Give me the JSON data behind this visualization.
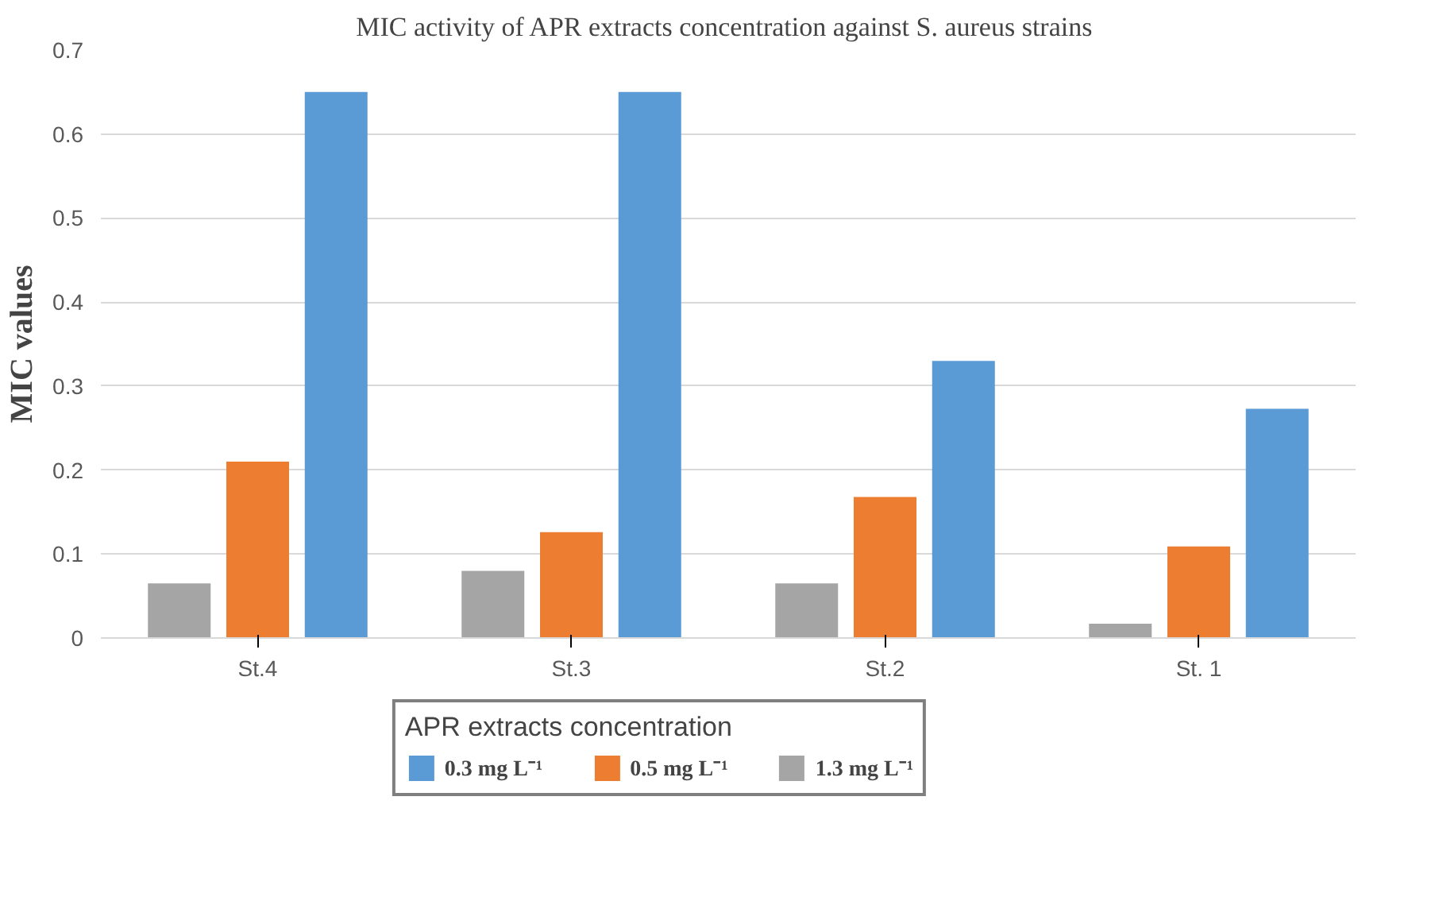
{
  "chart_data": {
    "type": "bar",
    "title": "MIC activity of APR extracts concentration against S. aureus  strains",
    "ylabel": "MIC values",
    "legend_title": "APR extracts concentration",
    "categories": [
      "St.4",
      "St.3",
      "St.2",
      "St. 1"
    ],
    "series": [
      {
        "name": "0.3 mg L⁻¹",
        "color": "#5b9bd5",
        "values": [
          0.65,
          0.65,
          0.33,
          0.273
        ]
      },
      {
        "name": "0.5 mg L⁻¹",
        "color": "#ed7d31",
        "values": [
          0.21,
          0.126,
          0.168,
          0.109
        ]
      },
      {
        "name": "1.3 mg L⁻¹",
        "color": "#a5a5a5",
        "values": [
          0.065,
          0.08,
          0.065,
          0.017
        ]
      }
    ],
    "ylim": [
      0,
      0.7
    ],
    "yticks": [
      0,
      0.1,
      0.2,
      0.3,
      0.4,
      0.5,
      0.6,
      0.7
    ],
    "grid": "y",
    "legend": "bottom"
  }
}
